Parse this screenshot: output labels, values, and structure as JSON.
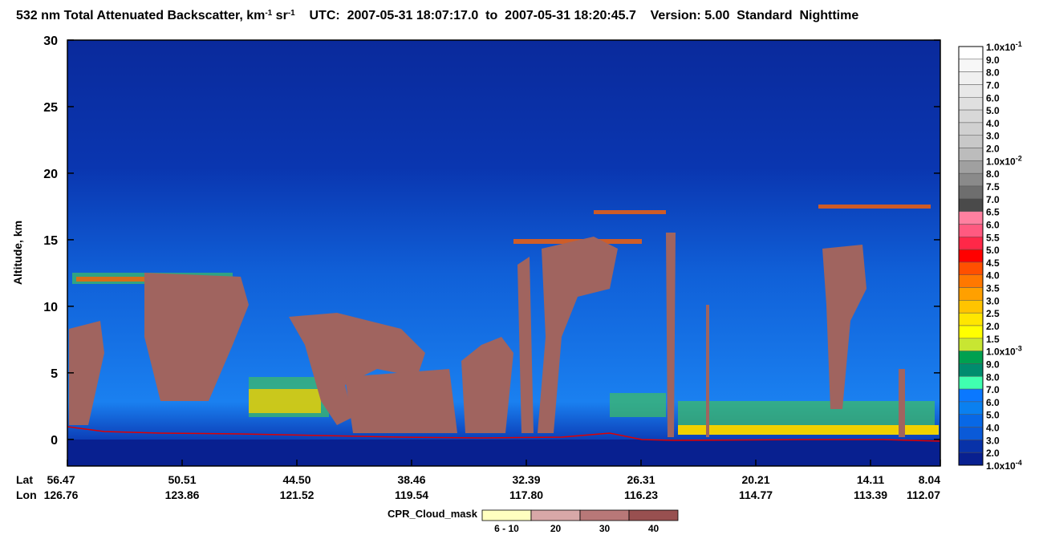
{
  "chart_data": {
    "type": "heatmap",
    "title_parts": [
      {
        "text": "532 nm Total Attenuated Backscatter, km",
        "sup": false
      },
      {
        "text": "-1",
        "sup": true
      },
      {
        "text": " sr",
        "sup": false
      },
      {
        "text": "-1",
        "sup": true
      },
      {
        "text": "    UTC:  2007-05-31 18:07:17.0  to  2007-05-31 18:20:45.7",
        "sup": false
      },
      {
        "text": "    Version: 5.00  Standard  Nighttime",
        "sup": false
      }
    ],
    "ylabel": "Altitude, km",
    "ylim": [
      -2,
      30
    ],
    "yticks": [
      0,
      5,
      10,
      15,
      20,
      25,
      30
    ],
    "xtick_rows": [
      "Lat",
      "Lon"
    ],
    "xticks": [
      {
        "lat": "56.47",
        "lon": "126.76"
      },
      {
        "lat": "50.51",
        "lon": "123.86"
      },
      {
        "lat": "44.50",
        "lon": "121.52"
      },
      {
        "lat": "38.46",
        "lon": "119.54"
      },
      {
        "lat": "32.39",
        "lon": "117.80"
      },
      {
        "lat": "26.31",
        "lon": "116.23"
      },
      {
        "lat": "20.21",
        "lon": "114.77"
      },
      {
        "lat": "14.11",
        "lon": "113.39"
      },
      {
        "lat": "8.04",
        "lon": "112.07"
      }
    ],
    "colorbar": {
      "labels": [
        {
          "mantissa": "1.0x10",
          "exp": "-1"
        },
        "9.0",
        "8.0",
        "7.0",
        "6.0",
        "5.0",
        "4.0",
        "3.0",
        "2.0",
        {
          "mantissa": "1.0x10",
          "exp": "-2"
        },
        "8.0",
        "7.5",
        "7.0",
        "6.5",
        "6.0",
        "5.5",
        "5.0",
        "4.5",
        "4.0",
        "3.5",
        "3.0",
        "2.5",
        "2.0",
        "1.5",
        {
          "mantissa": "1.0x10",
          "exp": "-3"
        },
        "9.0",
        "8.0",
        "7.0",
        "6.0",
        "5.0",
        "4.0",
        "3.0",
        "2.0",
        {
          "mantissa": "1.0x10",
          "exp": "-4"
        }
      ],
      "colors": [
        "#ffffff",
        "#f7f7f7",
        "#f0f0f0",
        "#e8e8e8",
        "#e0e0e0",
        "#d8d8d8",
        "#d0d0d0",
        "#c8c8c8",
        "#bcbcbc",
        "#a0a0a0",
        "#8a8a8a",
        "#6e6e6e",
        "#4a4a4a",
        "#ff80a0",
        "#ff5a80",
        "#ff2848",
        "#ff0000",
        "#ff5000",
        "#ff7800",
        "#ffa000",
        "#ffc400",
        "#ffe600",
        "#ffff00",
        "#c8e632",
        "#00a050",
        "#008c6e",
        "#40ffb0",
        "#0a78ff",
        "#0a80f0",
        "#0868e6",
        "#0a5ad8",
        "#0832a8",
        "#082090"
      ]
    },
    "cpr_legend": {
      "title": "CPR_Cloud_mask",
      "labels": [
        "6 - 10",
        "20",
        "30",
        "40"
      ],
      "colors": [
        "#ffffc0",
        "#d8a8a8",
        "#b87878",
        "#985050"
      ]
    }
  }
}
